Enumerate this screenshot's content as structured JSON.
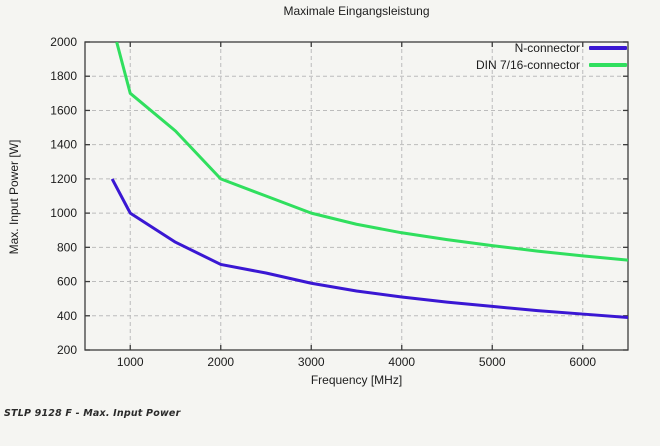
{
  "page": {
    "background": "#f5f5f2",
    "caption": "STLP 9128 F - Max. Input Power"
  },
  "chart_data": {
    "type": "line",
    "title": "Maximale Eingangsleistung",
    "xlabel": "Frequency [MHz]",
    "ylabel": "Max. Input Power [W]",
    "xlim": [
      500,
      6500
    ],
    "ylim": [
      200,
      2000
    ],
    "xticks": [
      1000,
      2000,
      3000,
      4000,
      5000,
      6000
    ],
    "yticks": [
      200,
      400,
      600,
      800,
      1000,
      1200,
      1400,
      1600,
      1800,
      2000
    ],
    "grid": true,
    "grid_color": "#bcbcbc",
    "axis_color": "#3c3c3c",
    "tick_label_color": "#1c1c1c",
    "legend_position": "top-right-inside",
    "series": [
      {
        "name": "N-connector",
        "color": "#3a17d3",
        "x": [
          800,
          1000,
          1500,
          2000,
          2500,
          3000,
          3500,
          4000,
          4500,
          5000,
          5500,
          6000,
          6500
        ],
        "values": [
          1200,
          1000,
          830,
          700,
          650,
          590,
          545,
          510,
          480,
          455,
          430,
          410,
          390
        ]
      },
      {
        "name": "DIN 7/16-connector",
        "color": "#30df5e",
        "x": [
          850,
          1000,
          1500,
          2000,
          2500,
          3000,
          3500,
          4000,
          4500,
          5000,
          5500,
          6000,
          6500
        ],
        "values": [
          2000,
          1700,
          1480,
          1200,
          1100,
          1000,
          935,
          885,
          845,
          810,
          778,
          750,
          725
        ]
      }
    ]
  }
}
